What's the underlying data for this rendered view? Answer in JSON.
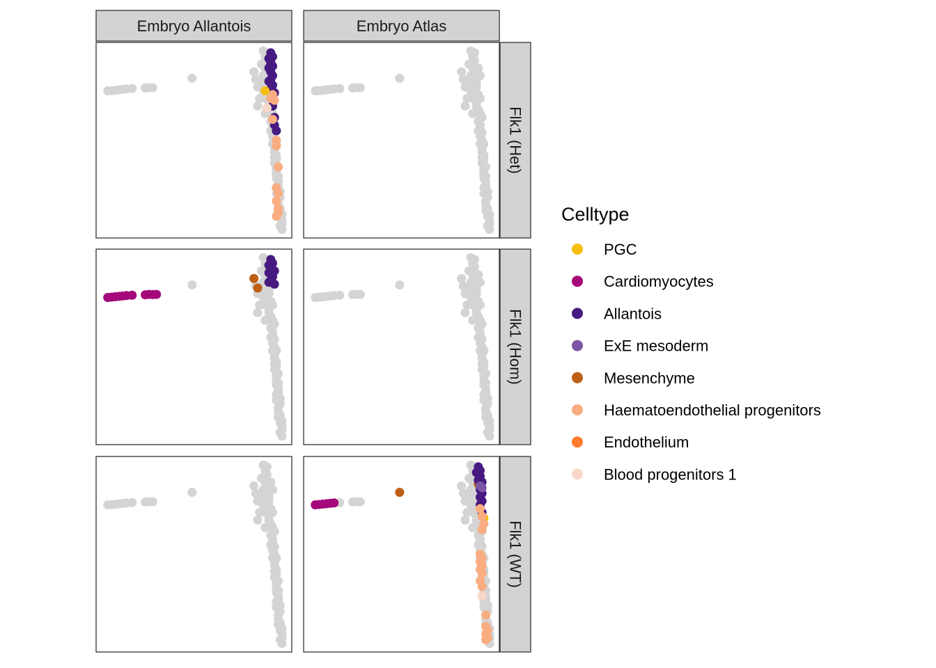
{
  "chart_data": {
    "type": "scatter",
    "facet_columns": [
      "Embryo Allantois",
      "Embryo Atlas"
    ],
    "facet_rows": [
      "Flk1 (Het)",
      "Flk1 (Hom)",
      "Flk1 (WT)"
    ],
    "axes": {
      "x_ticks_shown": false,
      "y_ticks_shown": false,
      "xlim": [
        0,
        1
      ],
      "ylim": [
        0,
        1
      ],
      "grid": false
    },
    "legend": {
      "title": "Celltype",
      "placement": "right",
      "entries": [
        {
          "label": "PGC",
          "color": "#F6BE0E"
        },
        {
          "label": "Cardiomyocytes",
          "color": "#A5087A"
        },
        {
          "label": "Allantois",
          "color": "#461A80"
        },
        {
          "label": "ExE mesoderm",
          "color": "#7A56A4"
        },
        {
          "label": "Mesenchyme",
          "color": "#BE5F16"
        },
        {
          "label": "Haematoendothelial progenitors",
          "color": "#F9AD80"
        },
        {
          "label": "Endothelium",
          "color": "#FF7A2C"
        },
        {
          "label": "Blood progenitors 1",
          "color": "#F8D6C8"
        }
      ]
    },
    "background_color": "#D4D4D4",
    "background_points": [
      [
        0.04,
        0.76
      ],
      [
        0.06,
        0.761
      ],
      [
        0.08,
        0.763
      ],
      [
        0.1,
        0.765
      ],
      [
        0.12,
        0.768
      ],
      [
        0.14,
        0.77
      ],
      [
        0.17,
        0.772
      ],
      [
        0.24,
        0.775
      ],
      [
        0.26,
        0.777
      ],
      [
        0.28,
        0.776
      ],
      [
        0.49,
        0.826
      ],
      [
        0.82,
        0.86
      ],
      [
        0.83,
        0.82
      ],
      [
        0.84,
        0.78
      ],
      [
        0.85,
        0.72
      ],
      [
        0.84,
        0.68
      ],
      [
        0.87,
        0.97
      ],
      [
        0.88,
        0.94
      ],
      [
        0.88,
        0.9
      ],
      [
        0.89,
        0.86
      ],
      [
        0.9,
        0.82
      ],
      [
        0.9,
        0.78
      ],
      [
        0.91,
        0.74
      ],
      [
        0.9,
        0.7
      ],
      [
        0.91,
        0.66
      ],
      [
        0.92,
        0.62
      ],
      [
        0.92,
        0.58
      ],
      [
        0.93,
        0.54
      ],
      [
        0.93,
        0.5
      ],
      [
        0.93,
        0.46
      ],
      [
        0.94,
        0.42
      ],
      [
        0.93,
        0.38
      ],
      [
        0.94,
        0.34
      ],
      [
        0.94,
        0.3
      ],
      [
        0.95,
        0.26
      ],
      [
        0.94,
        0.22
      ],
      [
        0.95,
        0.18
      ],
      [
        0.96,
        0.14
      ],
      [
        0.96,
        0.1
      ],
      [
        0.97,
        0.06
      ],
      [
        0.97,
        0.03
      ],
      [
        0.89,
        0.96
      ],
      [
        0.89,
        0.92
      ],
      [
        0.88,
        0.88
      ],
      [
        0.87,
        0.84
      ],
      [
        0.9,
        0.8
      ],
      [
        0.89,
        0.76
      ],
      [
        0.88,
        0.72
      ],
      [
        0.9,
        0.68
      ],
      [
        0.92,
        0.64
      ],
      [
        0.91,
        0.6
      ],
      [
        0.92,
        0.56
      ],
      [
        0.92,
        0.52
      ],
      [
        0.94,
        0.48
      ],
      [
        0.93,
        0.44
      ],
      [
        0.94,
        0.4
      ],
      [
        0.95,
        0.36
      ],
      [
        0.94,
        0.32
      ],
      [
        0.95,
        0.28
      ],
      [
        0.95,
        0.24
      ],
      [
        0.96,
        0.2
      ],
      [
        0.95,
        0.16
      ],
      [
        0.96,
        0.12
      ],
      [
        0.97,
        0.08
      ],
      [
        0.96,
        0.05
      ],
      [
        0.86,
        0.9
      ],
      [
        0.91,
        0.88
      ],
      [
        0.86,
        0.8
      ],
      [
        0.92,
        0.84
      ],
      [
        0.87,
        0.76
      ],
      [
        0.92,
        0.72
      ],
      [
        0.88,
        0.64
      ],
      [
        0.93,
        0.62
      ],
      [
        0.91,
        0.55
      ],
      [
        0.92,
        0.48
      ],
      [
        0.93,
        0.41
      ],
      [
        0.94,
        0.35
      ],
      [
        0.95,
        0.31
      ],
      [
        0.94,
        0.25
      ],
      [
        0.96,
        0.23
      ],
      [
        0.95,
        0.13
      ],
      [
        0.97,
        0.11
      ]
    ],
    "panels": [
      {
        "row": 0,
        "col": 0,
        "points": [
          {
            "type": "Allantois",
            "xy": [
              [
                0.91,
                0.96
              ],
              [
                0.92,
                0.94
              ],
              [
                0.9,
                0.93
              ],
              [
                0.91,
                0.91
              ],
              [
                0.92,
                0.89
              ],
              [
                0.9,
                0.88
              ],
              [
                0.91,
                0.86
              ],
              [
                0.92,
                0.84
              ],
              [
                0.91,
                0.82
              ],
              [
                0.9,
                0.81
              ],
              [
                0.92,
                0.79
              ],
              [
                0.91,
                0.77
              ],
              [
                0.93,
                0.75
              ],
              [
                0.92,
                0.68
              ],
              [
                0.93,
                0.62
              ],
              [
                0.93,
                0.58
              ],
              [
                0.94,
                0.55
              ]
            ]
          },
          {
            "type": "PGC",
            "xy": [
              [
                0.88,
                0.76
              ]
            ]
          },
          {
            "type": "Haematoendothelial progenitors",
            "xy": [
              [
                0.92,
                0.74
              ],
              [
                0.91,
                0.72
              ],
              [
                0.93,
                0.71
              ],
              [
                0.92,
                0.61
              ],
              [
                0.94,
                0.5
              ],
              [
                0.94,
                0.47
              ],
              [
                0.95,
                0.36
              ],
              [
                0.94,
                0.25
              ],
              [
                0.95,
                0.22
              ],
              [
                0.94,
                0.18
              ],
              [
                0.95,
                0.14
              ],
              [
                0.95,
                0.12
              ],
              [
                0.94,
                0.1
              ]
            ]
          },
          {
            "type": "Blood progenitors 1",
            "xy": [
              [
                0.89,
                0.67
              ]
            ]
          }
        ]
      },
      {
        "row": 0,
        "col": 1,
        "points": []
      },
      {
        "row": 1,
        "col": 0,
        "points": [
          {
            "type": "Cardiomyocytes",
            "xy": [
              [
                0.04,
                0.76
              ],
              [
                0.06,
                0.762
              ],
              [
                0.08,
                0.764
              ],
              [
                0.1,
                0.766
              ],
              [
                0.12,
                0.768
              ],
              [
                0.14,
                0.77
              ],
              [
                0.17,
                0.772
              ],
              [
                0.24,
                0.774
              ],
              [
                0.26,
                0.776
              ],
              [
                0.28,
                0.775
              ],
              [
                0.3,
                0.776
              ]
            ]
          },
          {
            "type": "Allantois",
            "xy": [
              [
                0.91,
                0.96
              ],
              [
                0.92,
                0.94
              ],
              [
                0.9,
                0.93
              ],
              [
                0.91,
                0.91
              ],
              [
                0.93,
                0.9
              ],
              [
                0.9,
                0.89
              ],
              [
                0.92,
                0.87
              ],
              [
                0.91,
                0.85
              ],
              [
                0.93,
                0.83
              ],
              [
                0.9,
                0.84
              ]
            ]
          },
          {
            "type": "Mesenchyme",
            "xy": [
              [
                0.82,
                0.86
              ],
              [
                0.84,
                0.81
              ]
            ]
          }
        ]
      },
      {
        "row": 1,
        "col": 1,
        "points": []
      },
      {
        "row": 2,
        "col": 0,
        "points": []
      },
      {
        "row": 2,
        "col": 1,
        "points": [
          {
            "type": "Cardiomyocytes",
            "xy": [
              [
                0.04,
                0.76
              ],
              [
                0.06,
                0.762
              ],
              [
                0.08,
                0.764
              ],
              [
                0.1,
                0.766
              ],
              [
                0.12,
                0.768
              ],
              [
                0.14,
                0.77
              ]
            ]
          },
          {
            "type": "Mesenchyme",
            "xy": [
              [
                0.49,
                0.826
              ],
              [
                0.91,
                0.87
              ]
            ]
          },
          {
            "type": "Allantois",
            "xy": [
              [
                0.91,
                0.96
              ],
              [
                0.92,
                0.94
              ],
              [
                0.9,
                0.93
              ],
              [
                0.92,
                0.91
              ],
              [
                0.91,
                0.89
              ],
              [
                0.93,
                0.88
              ],
              [
                0.92,
                0.84
              ],
              [
                0.93,
                0.82
              ],
              [
                0.92,
                0.8
              ],
              [
                0.93,
                0.78
              ],
              [
                0.92,
                0.76
              ],
              [
                0.93,
                0.72
              ]
            ]
          },
          {
            "type": "ExE mesoderm",
            "xy": [
              [
                0.92,
                0.86
              ],
              [
                0.93,
                0.85
              ]
            ]
          },
          {
            "type": "PGC",
            "xy": [
              [
                0.94,
                0.69
              ]
            ]
          },
          {
            "type": "Haematoendothelial progenitors",
            "xy": [
              [
                0.92,
                0.74
              ],
              [
                0.93,
                0.7
              ],
              [
                0.94,
                0.66
              ],
              [
                0.93,
                0.63
              ],
              [
                0.92,
                0.5
              ],
              [
                0.93,
                0.48
              ],
              [
                0.92,
                0.46
              ],
              [
                0.93,
                0.44
              ],
              [
                0.92,
                0.42
              ],
              [
                0.93,
                0.4
              ],
              [
                0.92,
                0.36
              ],
              [
                0.93,
                0.33
              ],
              [
                0.95,
                0.18
              ],
              [
                0.95,
                0.12
              ],
              [
                0.96,
                0.1
              ],
              [
                0.95,
                0.08
              ],
              [
                0.96,
                0.06
              ],
              [
                0.95,
                0.05
              ]
            ]
          },
          {
            "type": "Blood progenitors 1",
            "xy": [
              [
                0.93,
                0.28
              ]
            ]
          }
        ]
      }
    ]
  }
}
